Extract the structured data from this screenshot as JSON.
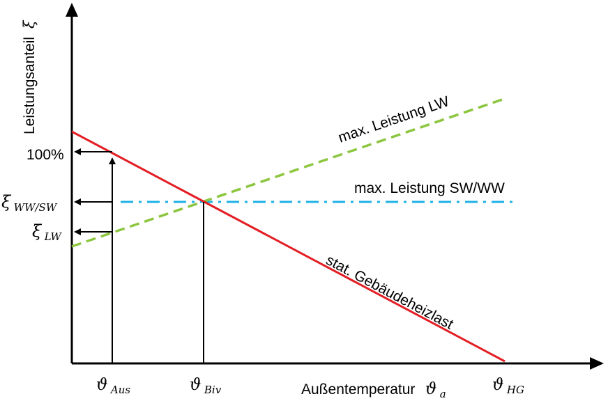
{
  "y_axis": {
    "title": "Leistungsanteil",
    "symbol": "ξ"
  },
  "x_axis": {
    "title": "Außentemperatur",
    "symbol": "ϑ",
    "symbol_sub": "a"
  },
  "y_ticks": {
    "full": "100%",
    "ww_sw_symbol": "ξ",
    "ww_sw_sub": "WW/SW",
    "lw_symbol": "ξ",
    "lw_sub": "LW"
  },
  "x_ticks": {
    "aus_symbol": "ϑ",
    "aus_sub": "Aus",
    "biv_symbol": "ϑ",
    "biv_sub": "Biv",
    "hg_symbol": "ϑ",
    "hg_sub": "HG"
  },
  "lines": {
    "lw": {
      "label": "max. Leistung LW",
      "color": "#8cc63f"
    },
    "swww": {
      "label": "max. Leistung SW/WW",
      "color": "#1fb0e6"
    },
    "last": {
      "label": "stat. Gebäudeheizlast",
      "color": "#e31e24"
    },
    "axis_color": "#000000"
  }
}
